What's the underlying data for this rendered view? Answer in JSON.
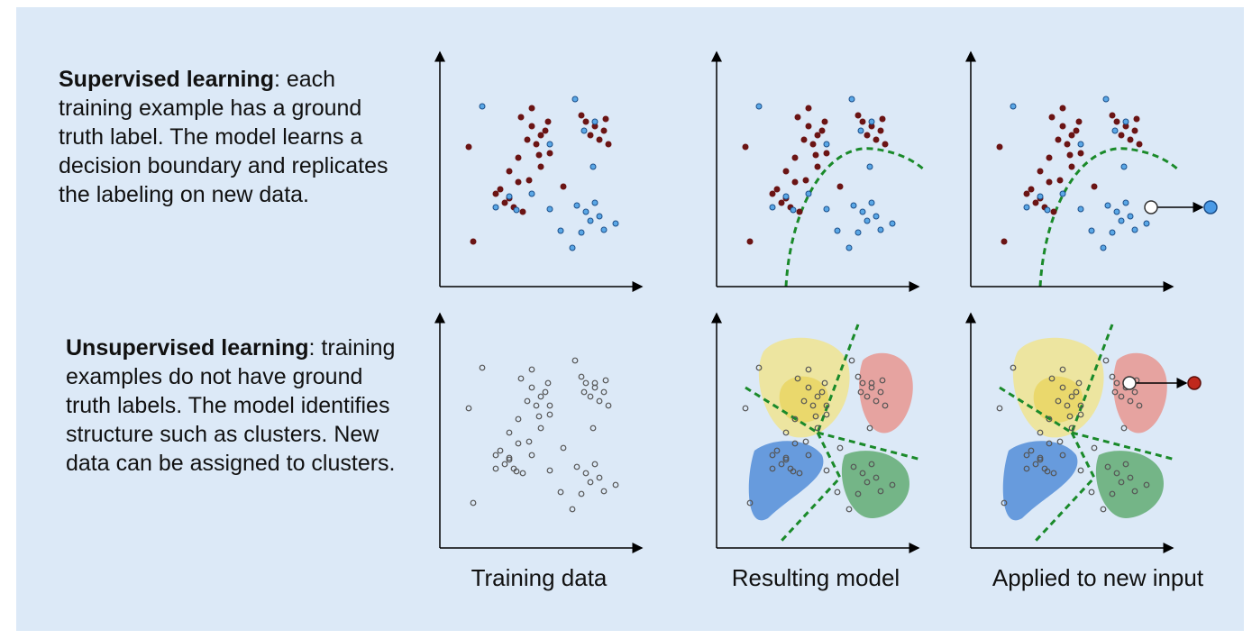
{
  "supervised": {
    "term": "Supervised learning",
    "description": ": each training example has a ground truth label. The model learns a decision boundary and replicates the labeling on new data."
  },
  "unsupervised": {
    "term": "Unsupervised learning",
    "description": ": training examples do not have ground truth labels. The model identifies structure such as clusters. New data can be assigned to clusters."
  },
  "columns": [
    "Training data",
    "Resulting model",
    "Applied to new input"
  ]
}
